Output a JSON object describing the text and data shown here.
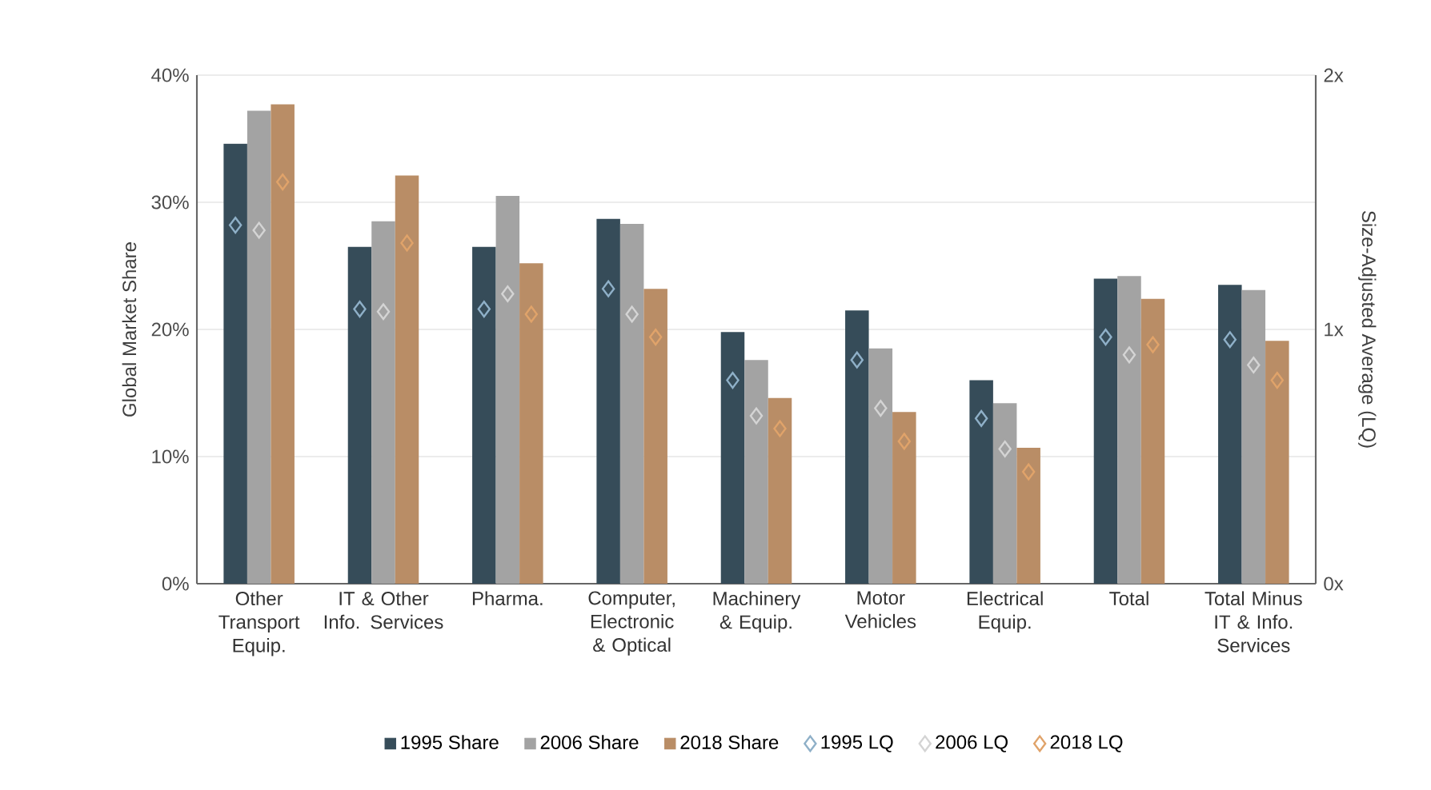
{
  "chart_data": {
    "type": "bar",
    "categories": [
      "Other Transport Equip.",
      "IT & Other Info. Services",
      "Pharma.",
      "Computer, Electronic & Optical",
      "Machinery & Equip.",
      "Motor Vehicles",
      "Electrical Equip.",
      "Total",
      "Total Minus IT & Info. Services"
    ],
    "ylabel": "Global Market Share",
    "y2label": "Size-Adjusted Average (LQ)",
    "ylim": [
      0,
      40
    ],
    "yticks": [
      {
        "value": 0,
        "label": "0%"
      },
      {
        "value": 10,
        "label": "10%"
      },
      {
        "value": 20,
        "label": "20%"
      },
      {
        "value": 30,
        "label": "30%"
      },
      {
        "value": 40,
        "label": "40%"
      }
    ],
    "y2lim": [
      0,
      2
    ],
    "y2ticks": [
      {
        "value": 0,
        "label": "0x"
      },
      {
        "value": 1,
        "label": "1x"
      },
      {
        "value": 2,
        "label": "2x"
      }
    ],
    "grid": "y",
    "legend": "bottom",
    "series": [
      {
        "name": "1995 Share",
        "color": "#364c59",
        "values": [
          34.6,
          26.5,
          26.5,
          28.7,
          19.8,
          21.5,
          16.0,
          24.0,
          23.5
        ]
      },
      {
        "name": "2006 Share",
        "color": "#a3a3a3",
        "values": [
          37.2,
          28.5,
          30.5,
          28.3,
          17.6,
          18.5,
          14.2,
          24.2,
          23.1
        ]
      },
      {
        "name": "2018 Share",
        "color": "#b98d66",
        "values": [
          37.7,
          32.1,
          25.2,
          23.2,
          14.6,
          13.5,
          10.7,
          22.4,
          19.1
        ]
      },
      {
        "name": "1995 LQ",
        "type": "scatter",
        "axis": "y2",
        "marker": "diamond",
        "color": "#8fb0c8",
        "values": [
          1.41,
          1.08,
          1.08,
          1.16,
          0.8,
          0.88,
          0.65,
          0.97,
          0.96
        ]
      },
      {
        "name": "2006 LQ",
        "type": "scatter",
        "axis": "y2",
        "marker": "diamond",
        "color": "#d4d4d4",
        "values": [
          1.39,
          1.07,
          1.14,
          1.06,
          0.66,
          0.69,
          0.53,
          0.9,
          0.86
        ]
      },
      {
        "name": "2018 LQ",
        "type": "scatter",
        "axis": "y2",
        "marker": "diamond",
        "color": "#e0a36a",
        "values": [
          1.58,
          1.34,
          1.06,
          0.97,
          0.61,
          0.56,
          0.44,
          0.94,
          0.8
        ]
      }
    ]
  }
}
